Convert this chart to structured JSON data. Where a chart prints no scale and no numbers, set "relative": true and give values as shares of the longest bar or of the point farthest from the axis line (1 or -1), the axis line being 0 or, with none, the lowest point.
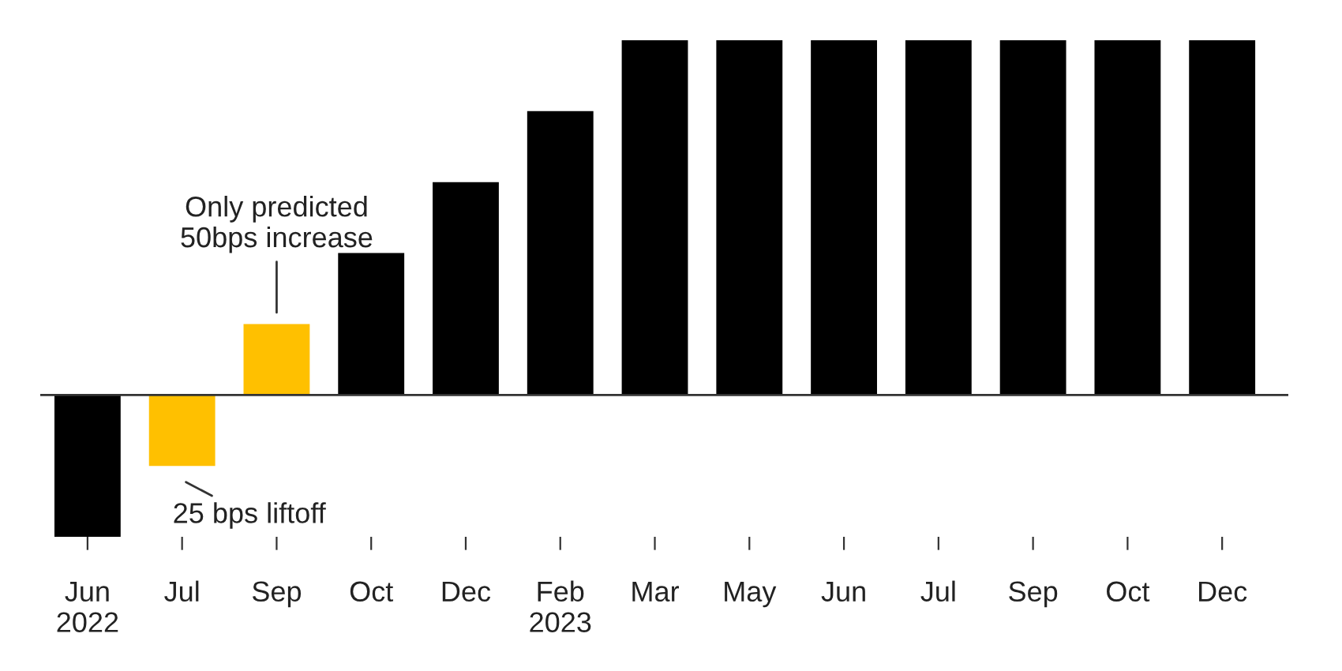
{
  "chart_data": {
    "type": "bar",
    "relative": true,
    "categories": [
      "Jun\n2022",
      "Jul",
      "Sep",
      "Oct",
      "Dec",
      "Feb\n2023",
      "Mar",
      "May",
      "Jun",
      "Jul",
      "Sep",
      "Oct",
      "Dec"
    ],
    "values": [
      -0.4,
      -0.2,
      0.2,
      0.4,
      0.6,
      0.8,
      1,
      1,
      1,
      1,
      1,
      1,
      1
    ],
    "colors": [
      "#000000",
      "#ffc000",
      "#ffc000",
      "#000000",
      "#000000",
      "#000000",
      "#000000",
      "#000000",
      "#000000",
      "#000000",
      "#000000",
      "#000000",
      "#000000"
    ],
    "annotations": [
      {
        "text": "Only predicted\n50bps increase",
        "x": "Sep",
        "y": 0.2
      },
      {
        "text": "25 bps liftoff",
        "x": "Jul",
        "y": -0.2
      }
    ]
  }
}
